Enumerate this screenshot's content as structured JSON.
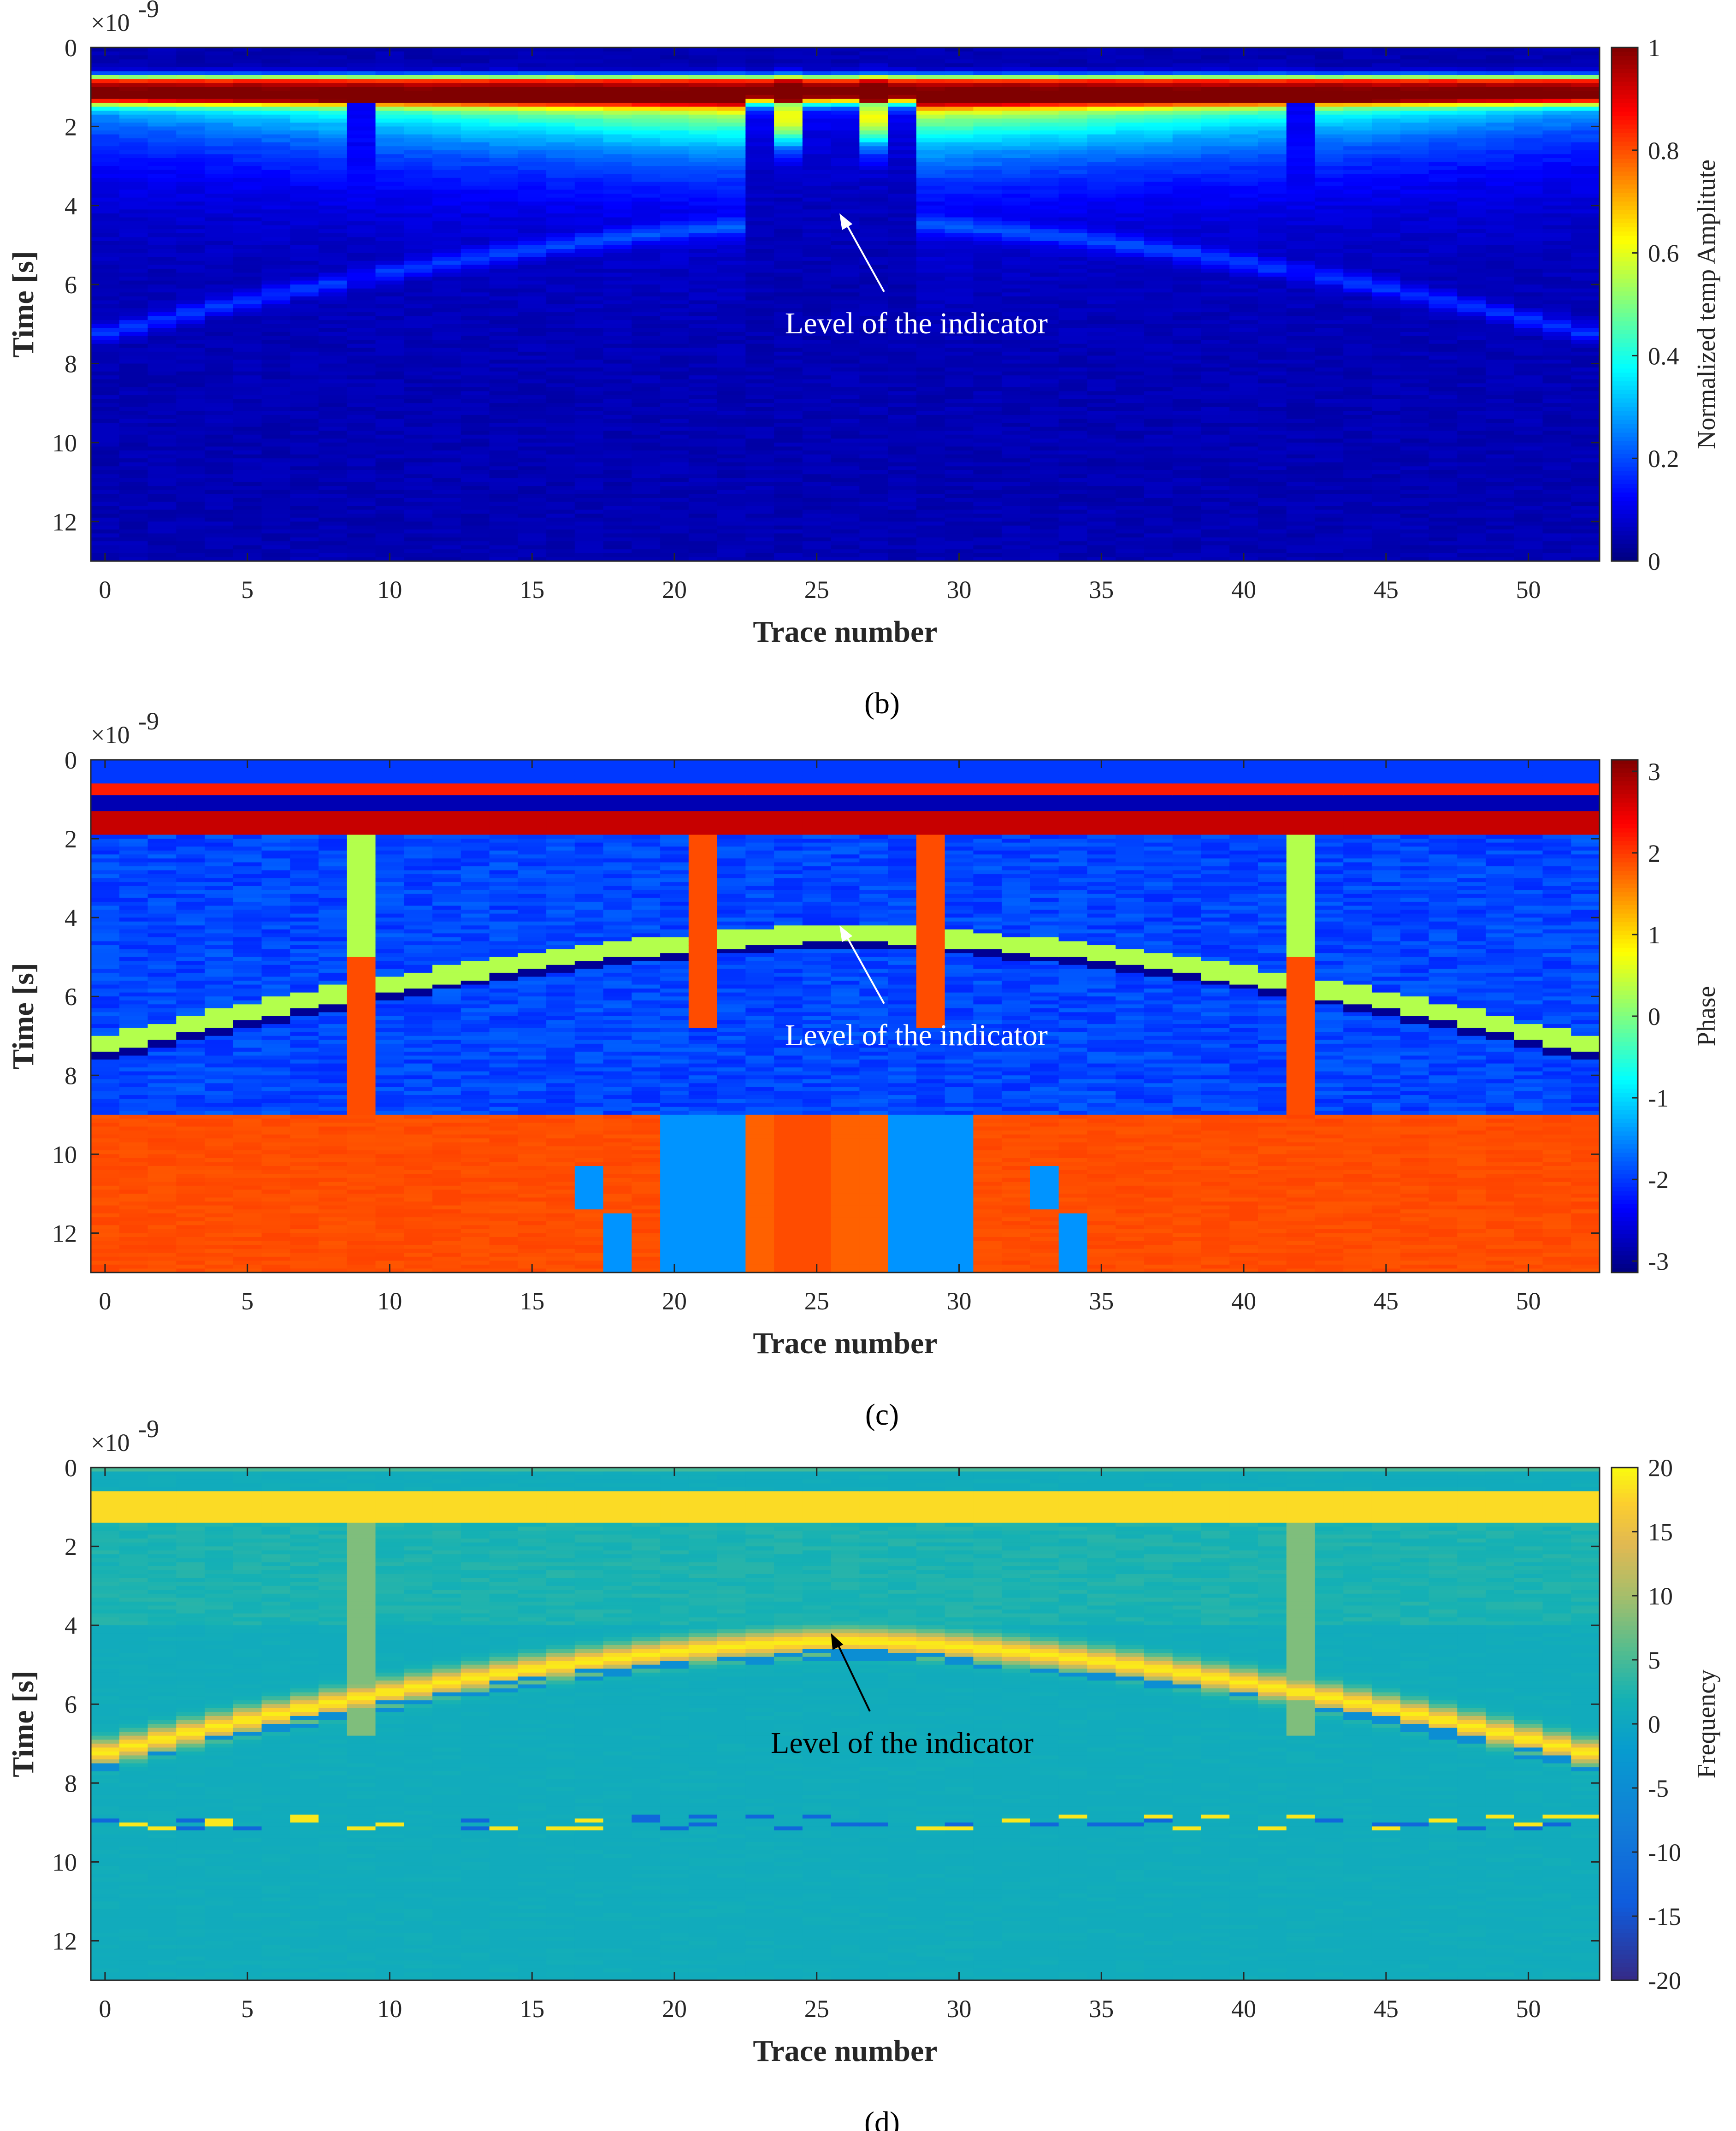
{
  "chart_data": [
    {
      "type": "heatmap",
      "panel_label": "b",
      "title": "",
      "xlabel": "Trace number",
      "ylabel": "Time [s]",
      "y_exponent": "-9",
      "xlim": [
        -0.5,
        52.5
      ],
      "ylim": [
        0,
        13
      ],
      "y_reversed": true,
      "xticks": [
        0,
        5,
        10,
        15,
        20,
        25,
        30,
        35,
        40,
        45,
        50
      ],
      "yticks": [
        0,
        2,
        4,
        6,
        8,
        10,
        12
      ],
      "colormap": "jet",
      "colorbar": {
        "label": "Normalized temp Amplitute",
        "range": [
          0,
          1
        ],
        "ticks": [
          0,
          0.2,
          0.4,
          0.6,
          0.8,
          1
        ],
        "tick_labels": [
          "0",
          "0.2",
          "0.4",
          "0.6",
          "0.8",
          "1"
        ]
      },
      "annotation": {
        "text": "Level of the indicator",
        "color": "#ffffff",
        "points_to": {
          "x": 25.8,
          "y": 4.2
        },
        "text_anchor": {
          "x": 28.5,
          "y": 7.0
        }
      },
      "features": {
        "surface_band_time": 1.2,
        "reflector_hyperbola": {
          "apex_trace": 26,
          "apex_time": 4.4,
          "edge_time": 7.4
        },
        "anomalous_traces": [
          9,
          24,
          27,
          42
        ]
      }
    },
    {
      "type": "heatmap",
      "panel_label": "c",
      "title": "",
      "xlabel": "Trace number",
      "ylabel": "Time [s]",
      "y_exponent": "-9",
      "xlim": [
        -0.5,
        52.5
      ],
      "ylim": [
        0,
        13
      ],
      "y_reversed": true,
      "xticks": [
        0,
        5,
        10,
        15,
        20,
        25,
        30,
        35,
        40,
        45,
        50
      ],
      "yticks": [
        0,
        2,
        4,
        6,
        8,
        10,
        12
      ],
      "colormap": "jet",
      "colorbar": {
        "label": "Phase",
        "range": [
          -3.14,
          3.14
        ],
        "ticks": [
          -3,
          -2,
          -1,
          0,
          1,
          2,
          3
        ],
        "tick_labels": [
          "-3",
          "-2",
          "-1",
          "0",
          "1",
          "2",
          "3"
        ]
      },
      "annotation": {
        "text": "Level of the indicator",
        "color": "#ffffff",
        "points_to": {
          "x": 25.8,
          "y": 4.2
        },
        "text_anchor": {
          "x": 28.5,
          "y": 7.0
        }
      },
      "features": {
        "surface_band_time": 1.2,
        "reflector_hyperbola": {
          "apex_trace": 26,
          "apex_time": 4.4,
          "edge_time": 7.4
        },
        "orange_region_top_time": 9.0,
        "anomalous_traces": [
          9,
          21,
          29,
          42
        ]
      }
    },
    {
      "type": "heatmap",
      "panel_label": "d",
      "title": "",
      "xlabel": "Trace number",
      "ylabel": "Time [s]",
      "y_exponent": "-9",
      "xlim": [
        -0.5,
        52.5
      ],
      "ylim": [
        0,
        13
      ],
      "y_reversed": true,
      "xticks": [
        0,
        5,
        10,
        15,
        20,
        25,
        30,
        35,
        40,
        45,
        50
      ],
      "yticks": [
        0,
        2,
        4,
        6,
        8,
        10,
        12
      ],
      "colormap": "parula",
      "colorbar": {
        "label": "Frequency",
        "range": [
          -20,
          20
        ],
        "ticks": [
          -20,
          -15,
          -10,
          -5,
          0,
          5,
          10,
          15,
          20
        ],
        "tick_labels": [
          "-20",
          "-15",
          "-10",
          "-5",
          "0",
          "5",
          "10",
          "15",
          "20"
        ]
      },
      "annotation": {
        "text": "Level of the indicator",
        "color": "#000000",
        "points_to": {
          "x": 25.5,
          "y": 4.2
        },
        "text_anchor": {
          "x": 28.0,
          "y": 7.0
        }
      },
      "features": {
        "surface_band_time": 1.2,
        "reflector_hyperbola": {
          "apex_trace": 26,
          "apex_time": 4.4,
          "edge_time": 7.4
        },
        "anomalous_traces": [
          9,
          21,
          29,
          42
        ]
      }
    }
  ],
  "captions": [
    "(b)",
    "(c)",
    "(d)"
  ],
  "colors": {
    "jet_low": "#00008f",
    "jet_high": "#800000",
    "parula_low": "#352a87",
    "parula_high": "#f9fb0e",
    "axis": "#262626"
  }
}
